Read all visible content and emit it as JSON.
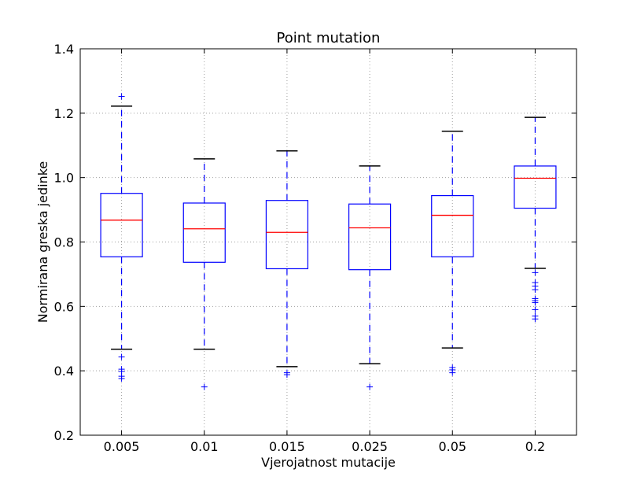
{
  "chart_data": {
    "type": "box",
    "title": "Point mutation",
    "xlabel": "Vjerojatnost mutacije",
    "ylabel": "Normirana greska jedinke",
    "ylim": [
      0.2,
      1.4
    ],
    "yticks": [
      "0.2",
      "0.4",
      "0.6",
      "0.8",
      "1.0",
      "1.2",
      "1.4"
    ],
    "grid": true,
    "categories": [
      "0.005",
      "0.01",
      "0.015",
      "0.025",
      "0.05",
      "0.2"
    ],
    "boxes": [
      {
        "whisker_low": 0.467,
        "q1": 0.754,
        "median": 0.868,
        "q3": 0.951,
        "whisker_high": 1.222,
        "outliers": [
          0.376,
          0.383,
          0.398,
          0.405,
          0.443,
          1.252
        ]
      },
      {
        "whisker_low": 0.467,
        "q1": 0.737,
        "median": 0.841,
        "q3": 0.921,
        "whisker_high": 1.058,
        "outliers": [
          0.35
        ]
      },
      {
        "whisker_low": 0.413,
        "q1": 0.717,
        "median": 0.83,
        "q3": 0.929,
        "whisker_high": 1.083,
        "outliers": [
          0.388,
          0.394
        ]
      },
      {
        "whisker_low": 0.422,
        "q1": 0.714,
        "median": 0.844,
        "q3": 0.918,
        "whisker_high": 1.036,
        "outliers": [
          0.35
        ]
      },
      {
        "whisker_low": 0.471,
        "q1": 0.754,
        "median": 0.883,
        "q3": 0.944,
        "whisker_high": 1.144,
        "outliers": [
          0.394,
          0.403,
          0.41
        ]
      },
      {
        "whisker_low": 0.718,
        "q1": 0.905,
        "median": 0.998,
        "q3": 1.036,
        "whisker_high": 1.187,
        "outliers": [
          0.561,
          0.57,
          0.59,
          0.612,
          0.618,
          0.624,
          0.652,
          0.663,
          0.674,
          0.705
        ]
      }
    ],
    "colors": {
      "box": "#0000ff",
      "median": "#ff0000",
      "cap": "#000000",
      "whisker": "#0000ff",
      "outlier": "#0000ff",
      "grid": "#a0a0a0"
    }
  }
}
